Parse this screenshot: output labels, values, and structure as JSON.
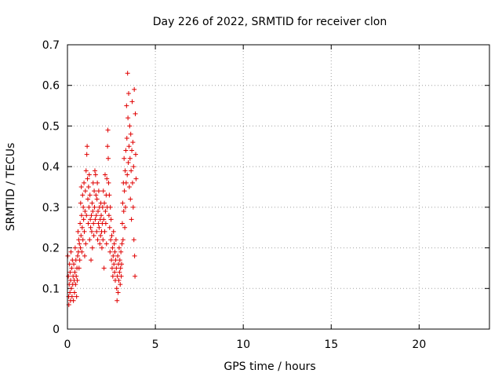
{
  "chart_data": {
    "type": "scatter",
    "title": "Day 226 of 2022, SRMTID for receiver clon",
    "xlabel": "GPS time / hours",
    "ylabel": "SRMTID / TECUs",
    "xlim": [
      0,
      24
    ],
    "ylim": [
      0,
      0.7
    ],
    "x_ticks": [
      0,
      5,
      10,
      15,
      20
    ],
    "x_tick_labels": [
      "0",
      "5",
      "10",
      "15",
      "20"
    ],
    "y_ticks": [
      0,
      0.1,
      0.2,
      0.3,
      0.4,
      0.5,
      0.6,
      0.7
    ],
    "y_tick_labels": [
      "0",
      "0.1",
      "0.2",
      "0.3",
      "0.4",
      "0.5",
      "0.6",
      "0.7"
    ],
    "grid": true,
    "marker_color": "#e00000",
    "series": [
      {
        "name": "SRMTID",
        "marker": "plus",
        "points": [
          [
            0.02,
            0.18
          ],
          [
            0.05,
            0.13
          ],
          [
            0.07,
            0.08
          ],
          [
            0.08,
            0.06
          ],
          [
            0.1,
            0.11
          ],
          [
            0.12,
            0.16
          ],
          [
            0.14,
            0.09
          ],
          [
            0.15,
            0.14
          ],
          [
            0.17,
            0.07
          ],
          [
            0.18,
            0.12
          ],
          [
            0.2,
            0.19
          ],
          [
            0.22,
            0.1
          ],
          [
            0.24,
            0.15
          ],
          [
            0.26,
            0.08
          ],
          [
            0.28,
            0.17
          ],
          [
            0.3,
            0.11
          ],
          [
            0.32,
            0.13
          ],
          [
            0.34,
            0.07
          ],
          [
            0.36,
            0.16
          ],
          [
            0.38,
            0.12
          ],
          [
            0.4,
            0.09
          ],
          [
            0.42,
            0.14
          ],
          [
            0.44,
            0.2
          ],
          [
            0.46,
            0.11
          ],
          [
            0.48,
            0.17
          ],
          [
            0.5,
            0.13
          ],
          [
            0.52,
            0.08
          ],
          [
            0.54,
            0.15
          ],
          [
            0.56,
            0.12
          ],
          [
            0.58,
            0.18
          ],
          [
            0.6,
            0.24
          ],
          [
            0.62,
            0.19
          ],
          [
            0.64,
            0.22
          ],
          [
            0.66,
            0.15
          ],
          [
            0.68,
            0.21
          ],
          [
            0.7,
            0.17
          ],
          [
            0.72,
            0.26
          ],
          [
            0.74,
            0.2
          ],
          [
            0.75,
            0.31
          ],
          [
            0.77,
            0.23
          ],
          [
            0.79,
            0.35
          ],
          [
            0.8,
            0.28
          ],
          [
            0.82,
            0.19
          ],
          [
            0.84,
            0.25
          ],
          [
            0.86,
            0.33
          ],
          [
            0.88,
            0.22
          ],
          [
            0.9,
            0.3
          ],
          [
            0.92,
            0.27
          ],
          [
            0.94,
            0.36
          ],
          [
            0.96,
            0.24
          ],
          [
            0.98,
            0.18
          ],
          [
            1.0,
            0.29
          ],
          [
            1.02,
            0.34
          ],
          [
            1.04,
            0.21
          ],
          [
            1.06,
            0.39
          ],
          [
            1.08,
            0.28
          ],
          [
            1.1,
            0.43
          ],
          [
            1.12,
            0.45
          ],
          [
            1.14,
            0.37
          ],
          [
            1.16,
            0.32
          ],
          [
            1.18,
            0.26
          ],
          [
            1.2,
            0.35
          ],
          [
            1.22,
            0.3
          ],
          [
            1.24,
            0.38
          ],
          [
            1.26,
            0.22
          ],
          [
            1.28,
            0.33
          ],
          [
            1.3,
            0.27
          ],
          [
            1.32,
            0.25
          ],
          [
            1.34,
            0.17
          ],
          [
            1.36,
            0.28
          ],
          [
            1.38,
            0.24
          ],
          [
            1.4,
            0.31
          ],
          [
            1.42,
            0.2
          ],
          [
            1.44,
            0.29
          ],
          [
            1.46,
            0.36
          ],
          [
            1.48,
            0.26
          ],
          [
            1.5,
            0.23
          ],
          [
            1.52,
            0.34
          ],
          [
            1.54,
            0.3
          ],
          [
            1.56,
            0.39
          ],
          [
            1.58,
            0.27
          ],
          [
            1.6,
            0.38
          ],
          [
            1.62,
            0.33
          ],
          [
            1.64,
            0.28
          ],
          [
            1.66,
            0.24
          ],
          [
            1.68,
            0.32
          ],
          [
            1.7,
            0.36
          ],
          [
            1.72,
            0.22
          ],
          [
            1.74,
            0.29
          ],
          [
            1.76,
            0.26
          ],
          [
            1.78,
            0.34
          ],
          [
            1.8,
            0.25
          ],
          [
            1.82,
            0.3
          ],
          [
            1.84,
            0.21
          ],
          [
            1.86,
            0.27
          ],
          [
            1.88,
            0.23
          ],
          [
            1.9,
            0.31
          ],
          [
            1.92,
            0.28
          ],
          [
            1.94,
            0.24
          ],
          [
            1.96,
            0.2
          ],
          [
            1.98,
            0.26
          ],
          [
            2.0,
            0.3
          ],
          [
            2.02,
            0.22
          ],
          [
            2.04,
            0.34
          ],
          [
            2.06,
            0.27
          ],
          [
            2.08,
            0.15
          ],
          [
            2.1,
            0.31
          ],
          [
            2.12,
            0.24
          ],
          [
            2.14,
            0.38
          ],
          [
            2.16,
            0.29
          ],
          [
            2.18,
            0.26
          ],
          [
            2.2,
            0.33
          ],
          [
            2.22,
            0.21
          ],
          [
            2.24,
            0.37
          ],
          [
            2.26,
            0.3
          ],
          [
            2.28,
            0.45
          ],
          [
            2.3,
            0.49
          ],
          [
            2.32,
            0.42
          ],
          [
            2.34,
            0.36
          ],
          [
            2.36,
            0.28
          ],
          [
            2.38,
            0.33
          ],
          [
            2.4,
            0.25
          ],
          [
            2.42,
            0.19
          ],
          [
            2.44,
            0.3
          ],
          [
            2.46,
            0.22
          ],
          [
            2.48,
            0.27
          ],
          [
            2.5,
            0.17
          ],
          [
            2.52,
            0.23
          ],
          [
            2.54,
            0.15
          ],
          [
            2.56,
            0.2
          ],
          [
            2.58,
            0.13
          ],
          [
            2.6,
            0.18
          ],
          [
            2.62,
            0.24
          ],
          [
            2.64,
            0.16
          ],
          [
            2.66,
            0.21
          ],
          [
            2.68,
            0.14
          ],
          [
            2.7,
            0.19
          ],
          [
            2.72,
            0.12
          ],
          [
            2.74,
            0.17
          ],
          [
            2.76,
            0.22
          ],
          [
            2.78,
            0.15
          ],
          [
            2.8,
            0.1
          ],
          [
            2.82,
            0.07
          ],
          [
            2.84,
            0.13
          ],
          [
            2.86,
            0.18
          ],
          [
            2.88,
            0.09
          ],
          [
            2.9,
            0.16
          ],
          [
            2.92,
            0.12
          ],
          [
            2.94,
            0.2
          ],
          [
            2.96,
            0.14
          ],
          [
            2.98,
            0.17
          ],
          [
            3.0,
            0.11
          ],
          [
            3.02,
            0.15
          ],
          [
            3.04,
            0.19
          ],
          [
            3.06,
            0.13
          ],
          [
            3.08,
            0.16
          ],
          [
            3.1,
            0.21
          ],
          [
            3.12,
            0.26
          ],
          [
            3.14,
            0.31
          ],
          [
            3.16,
            0.22
          ],
          [
            3.18,
            0.36
          ],
          [
            3.2,
            0.29
          ],
          [
            3.22,
            0.42
          ],
          [
            3.24,
            0.34
          ],
          [
            3.26,
            0.25
          ],
          [
            3.28,
            0.39
          ],
          [
            3.3,
            0.3
          ],
          [
            3.32,
            0.44
          ],
          [
            3.34,
            0.36
          ],
          [
            3.36,
            0.55
          ],
          [
            3.38,
            0.47
          ],
          [
            3.4,
            0.38
          ],
          [
            3.42,
            0.63
          ],
          [
            3.44,
            0.52
          ],
          [
            3.46,
            0.41
          ],
          [
            3.48,
            0.58
          ],
          [
            3.5,
            0.45
          ],
          [
            3.52,
            0.35
          ],
          [
            3.54,
            0.5
          ],
          [
            3.56,
            0.42
          ],
          [
            3.58,
            0.32
          ],
          [
            3.6,
            0.48
          ],
          [
            3.62,
            0.39
          ],
          [
            3.64,
            0.27
          ],
          [
            3.66,
            0.44
          ],
          [
            3.68,
            0.56
          ],
          [
            3.7,
            0.36
          ],
          [
            3.72,
            0.46
          ],
          [
            3.74,
            0.3
          ],
          [
            3.76,
            0.4
          ],
          [
            3.78,
            0.22
          ],
          [
            3.8,
            0.59
          ],
          [
            3.82,
            0.18
          ],
          [
            3.84,
            0.13
          ],
          [
            3.86,
            0.53
          ],
          [
            3.88,
            0.43
          ],
          [
            3.9,
            0.37
          ]
        ]
      }
    ]
  }
}
